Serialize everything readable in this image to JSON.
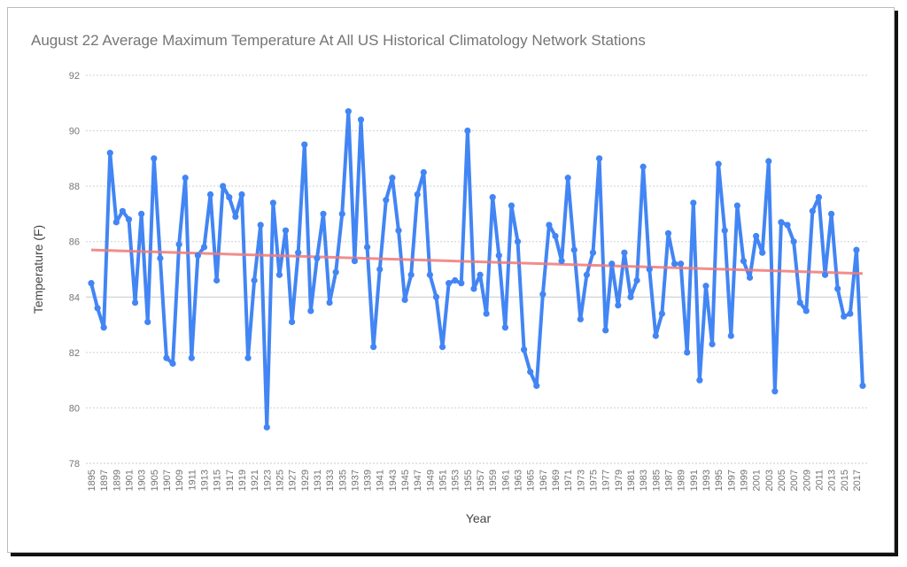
{
  "chart_data": {
    "type": "line",
    "title": "August 22 Average Maximum Temperature At All US Historical Climatology Network Stations",
    "xlabel": "Year",
    "ylabel": "Temperature (F)",
    "ylim": [
      78,
      92
    ],
    "yticks": [
      78,
      80,
      82,
      84,
      86,
      88,
      90,
      92
    ],
    "xlim": [
      1895,
      2018
    ],
    "xtick_start": 1895,
    "xtick_step": 2,
    "grid": true,
    "series": [
      {
        "name": "Temperature",
        "color": "#4285f4",
        "x_start": 1895,
        "values": [
          84.5,
          83.6,
          82.9,
          89.2,
          86.7,
          87.1,
          86.8,
          83.8,
          87.0,
          83.1,
          89.0,
          85.4,
          81.8,
          81.6,
          85.9,
          88.3,
          81.8,
          85.5,
          85.8,
          87.7,
          84.6,
          88.0,
          87.6,
          86.9,
          87.7,
          81.8,
          84.6,
          86.6,
          79.3,
          87.4,
          84.8,
          86.4,
          83.1,
          85.6,
          89.5,
          83.5,
          85.4,
          87.0,
          83.8,
          84.9,
          87.0,
          90.7,
          85.3,
          90.4,
          85.8,
          82.2,
          85.0,
          87.5,
          88.3,
          86.4,
          83.9,
          84.8,
          87.7,
          88.5,
          84.8,
          84.0,
          82.2,
          84.5,
          84.6,
          84.5,
          90.0,
          84.3,
          84.8,
          83.4,
          87.6,
          85.5,
          82.9,
          87.3,
          86.0,
          82.1,
          81.3,
          80.8,
          84.1,
          86.6,
          86.2,
          85.3,
          88.3,
          85.7,
          83.2,
          84.8,
          85.6,
          89.0,
          82.8,
          85.2,
          83.7,
          85.6,
          84.0,
          84.6,
          88.7,
          85.0,
          82.6,
          83.4,
          86.3,
          85.2,
          85.2,
          82.0,
          87.4,
          81.0,
          84.4,
          82.3,
          88.8,
          86.4,
          82.6,
          87.3,
          85.3,
          84.7,
          86.2,
          85.6,
          88.9,
          80.6,
          86.7,
          86.6,
          86.0,
          83.8,
          83.5,
          87.1,
          87.6,
          84.8,
          87.0,
          84.3,
          83.3,
          83.4,
          85.7,
          80.8
        ]
      },
      {
        "name": "Trendline",
        "color": "#ef7a7a",
        "x": [
          1895,
          2018
        ],
        "values": [
          85.7,
          84.85
        ]
      }
    ]
  }
}
